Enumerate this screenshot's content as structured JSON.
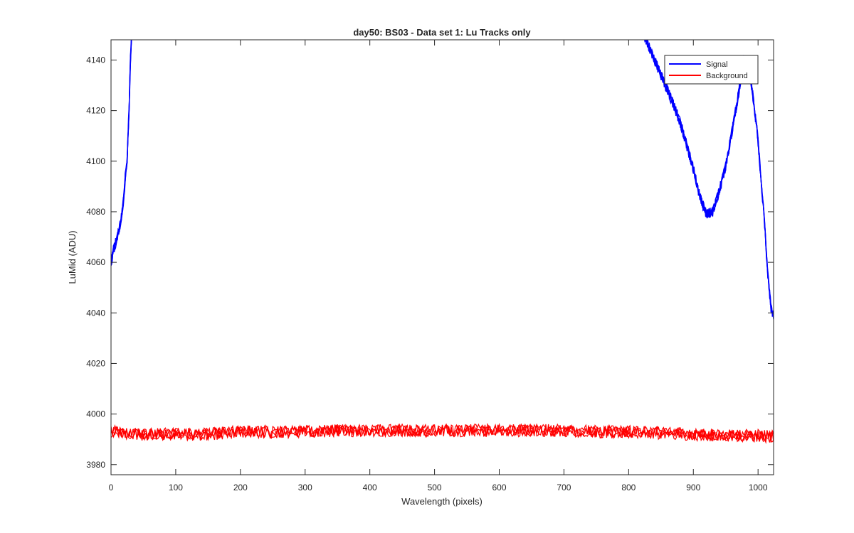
{
  "chart_data": {
    "type": "line",
    "title": "day50: BS03 - Data set 1: Lu Tracks only",
    "xlabel": "Wavelength (pixels)",
    "ylabel": "LuMid (ADU)",
    "xlim": [
      0,
      1024
    ],
    "ylim": [
      3976,
      4148
    ],
    "xticks": [
      0,
      100,
      200,
      300,
      400,
      500,
      600,
      700,
      800,
      900,
      1000
    ],
    "yticks": [
      3980,
      4000,
      4020,
      4040,
      4060,
      4080,
      4100,
      4120,
      4140
    ],
    "grid": false,
    "legend_position": "top-right",
    "series": [
      {
        "name": "Signal",
        "color": "#0000ff",
        "segments": [
          {
            "x": [
              0,
              5,
              10,
              15,
              20,
              22,
              25,
              28,
              30,
              32
            ],
            "y": [
              4060,
              4066,
              4070,
              4076,
              4086,
              4094,
              4100,
              4122,
              4140,
              4150
            ]
          },
          {
            "x": [
              823,
              830,
              840,
              850,
              860,
              870,
              880,
              890,
              900,
              910,
              920,
              930,
              940,
              950,
              960,
              970,
              978,
              985,
              990,
              1000,
              1010,
              1015,
              1020,
              1024
            ],
            "y": [
              4150,
              4146,
              4140,
              4134,
              4128,
              4122,
              4115,
              4106,
              4097,
              4086,
              4079,
              4080,
              4088,
              4098,
              4112,
              4127,
              4140,
              4138,
              4130,
              4108,
              4075,
              4055,
              4042,
              4039
            ]
          }
        ]
      },
      {
        "name": "Background",
        "color": "#ff0000",
        "x": [
          0,
          50,
          100,
          150,
          200,
          250,
          300,
          350,
          400,
          450,
          500,
          550,
          600,
          650,
          700,
          750,
          800,
          850,
          900,
          950,
          1000,
          1024
        ],
        "y": [
          3993,
          3992,
          3992,
          3992,
          3993,
          3993,
          3993,
          3993.5,
          3993.5,
          3993.5,
          3993.5,
          3993.5,
          3993.5,
          3993.5,
          3993.5,
          3993,
          3993,
          3992.5,
          3992,
          3991.5,
          3991.5,
          3991
        ],
        "noise_amplitude": 2.5
      }
    ]
  }
}
